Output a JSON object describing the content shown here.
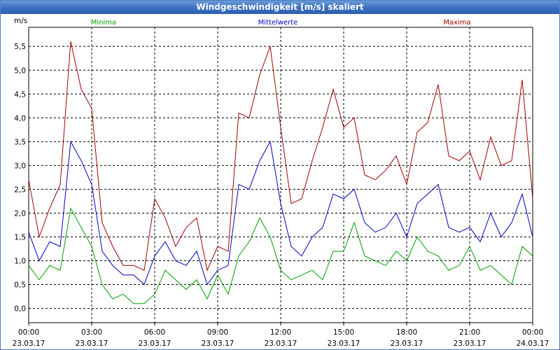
{
  "window": {
    "title": "Windgeschwindigkeit [m/s] skaliert"
  },
  "chart_data": {
    "type": "line",
    "title": "Windgeschwindigkeit [m/s] skaliert",
    "ylabel": "m/s",
    "xlabel": "",
    "ylim": [
      -0.3,
      5.9
    ],
    "xlim": [
      0,
      24
    ],
    "grid": true,
    "yticks": [
      0.0,
      0.5,
      1.0,
      1.5,
      2.0,
      2.5,
      3.0,
      3.5,
      4.0,
      4.5,
      5.0,
      5.5
    ],
    "ytick_labels": [
      "0,0",
      "0,5",
      "1,0",
      "1,5",
      "2,0",
      "2,5",
      "3,0",
      "3,5",
      "4,0",
      "4,5",
      "5,0",
      "5,5"
    ],
    "xticks": [
      {
        "hour": 0,
        "time": "00:00",
        "date": "23.03.17"
      },
      {
        "hour": 3,
        "time": "03:00",
        "date": "23.03.17"
      },
      {
        "hour": 6,
        "time": "06:00",
        "date": "23.03.17"
      },
      {
        "hour": 9,
        "time": "09:00",
        "date": "23.03.17"
      },
      {
        "hour": 12,
        "time": "12:00",
        "date": "23.03.17"
      },
      {
        "hour": 15,
        "time": "15:00",
        "date": "23.03.17"
      },
      {
        "hour": 18,
        "time": "18:00",
        "date": "23.03.17"
      },
      {
        "hour": 21,
        "time": "21:00",
        "date": "23.03.17"
      },
      {
        "hour": 24,
        "time": "00:00",
        "date": "24.03.17"
      }
    ],
    "x": [
      0,
      0.5,
      1,
      1.5,
      2,
      2.5,
      3,
      3.5,
      4,
      4.5,
      5,
      5.5,
      6,
      6.5,
      7,
      7.5,
      8,
      8.5,
      9,
      9.5,
      10,
      10.5,
      11,
      11.5,
      12,
      12.5,
      13,
      13.5,
      14,
      14.5,
      15,
      15.5,
      16,
      16.5,
      17,
      17.5,
      18,
      18.5,
      19,
      19.5,
      20,
      20.5,
      21,
      21.5,
      22,
      22.5,
      23,
      23.5,
      24
    ],
    "series": [
      {
        "name": "Minima",
        "color": "#00a000",
        "values": [
          0.9,
          0.6,
          0.9,
          0.8,
          2.1,
          1.7,
          1.3,
          0.5,
          0.2,
          0.3,
          0.1,
          0.1,
          0.3,
          0.8,
          0.6,
          0.4,
          0.6,
          0.2,
          0.7,
          0.3,
          1.1,
          1.4,
          1.9,
          1.5,
          0.8,
          0.6,
          0.7,
          0.8,
          0.6,
          1.2,
          1.2,
          1.8,
          1.1,
          1.0,
          0.9,
          1.2,
          1.0,
          1.5,
          1.2,
          1.1,
          0.8,
          0.9,
          1.3,
          0.8,
          0.9,
          0.7,
          0.5,
          1.3,
          1.1
        ]
      },
      {
        "name": "Mittelwerte",
        "color": "#0000c0",
        "values": [
          1.6,
          1.0,
          1.4,
          1.3,
          3.5,
          3.1,
          2.6,
          1.2,
          0.9,
          0.7,
          0.7,
          0.5,
          1.1,
          1.4,
          1.0,
          0.9,
          1.2,
          0.5,
          0.8,
          0.9,
          2.6,
          2.5,
          3.1,
          3.5,
          2.2,
          1.3,
          1.1,
          1.5,
          1.7,
          2.4,
          2.3,
          2.5,
          1.8,
          1.6,
          1.7,
          2.0,
          1.5,
          2.2,
          2.4,
          2.6,
          1.7,
          1.6,
          1.7,
          1.4,
          2.0,
          1.5,
          1.8,
          2.4,
          1.5
        ]
      },
      {
        "name": "Maxima",
        "color": "#a00000",
        "values": [
          2.7,
          1.5,
          2.1,
          2.6,
          5.6,
          4.6,
          4.2,
          1.8,
          1.3,
          0.9,
          0.9,
          0.8,
          2.3,
          1.9,
          1.3,
          1.7,
          1.9,
          0.8,
          1.3,
          1.2,
          4.1,
          4.0,
          4.9,
          5.5,
          3.8,
          2.2,
          2.3,
          3.1,
          3.8,
          4.6,
          3.8,
          4.0,
          2.8,
          2.7,
          2.9,
          3.2,
          2.6,
          3.7,
          3.9,
          4.7,
          3.2,
          3.1,
          3.3,
          2.7,
          3.6,
          3.0,
          3.1,
          4.8,
          2.3
        ]
      }
    ],
    "legend": [
      {
        "label": "Minima",
        "color": "#00a000"
      },
      {
        "label": "Mittelwerte",
        "color": "#0000c0"
      },
      {
        "label": "Maxima",
        "color": "#a00000"
      }
    ]
  }
}
